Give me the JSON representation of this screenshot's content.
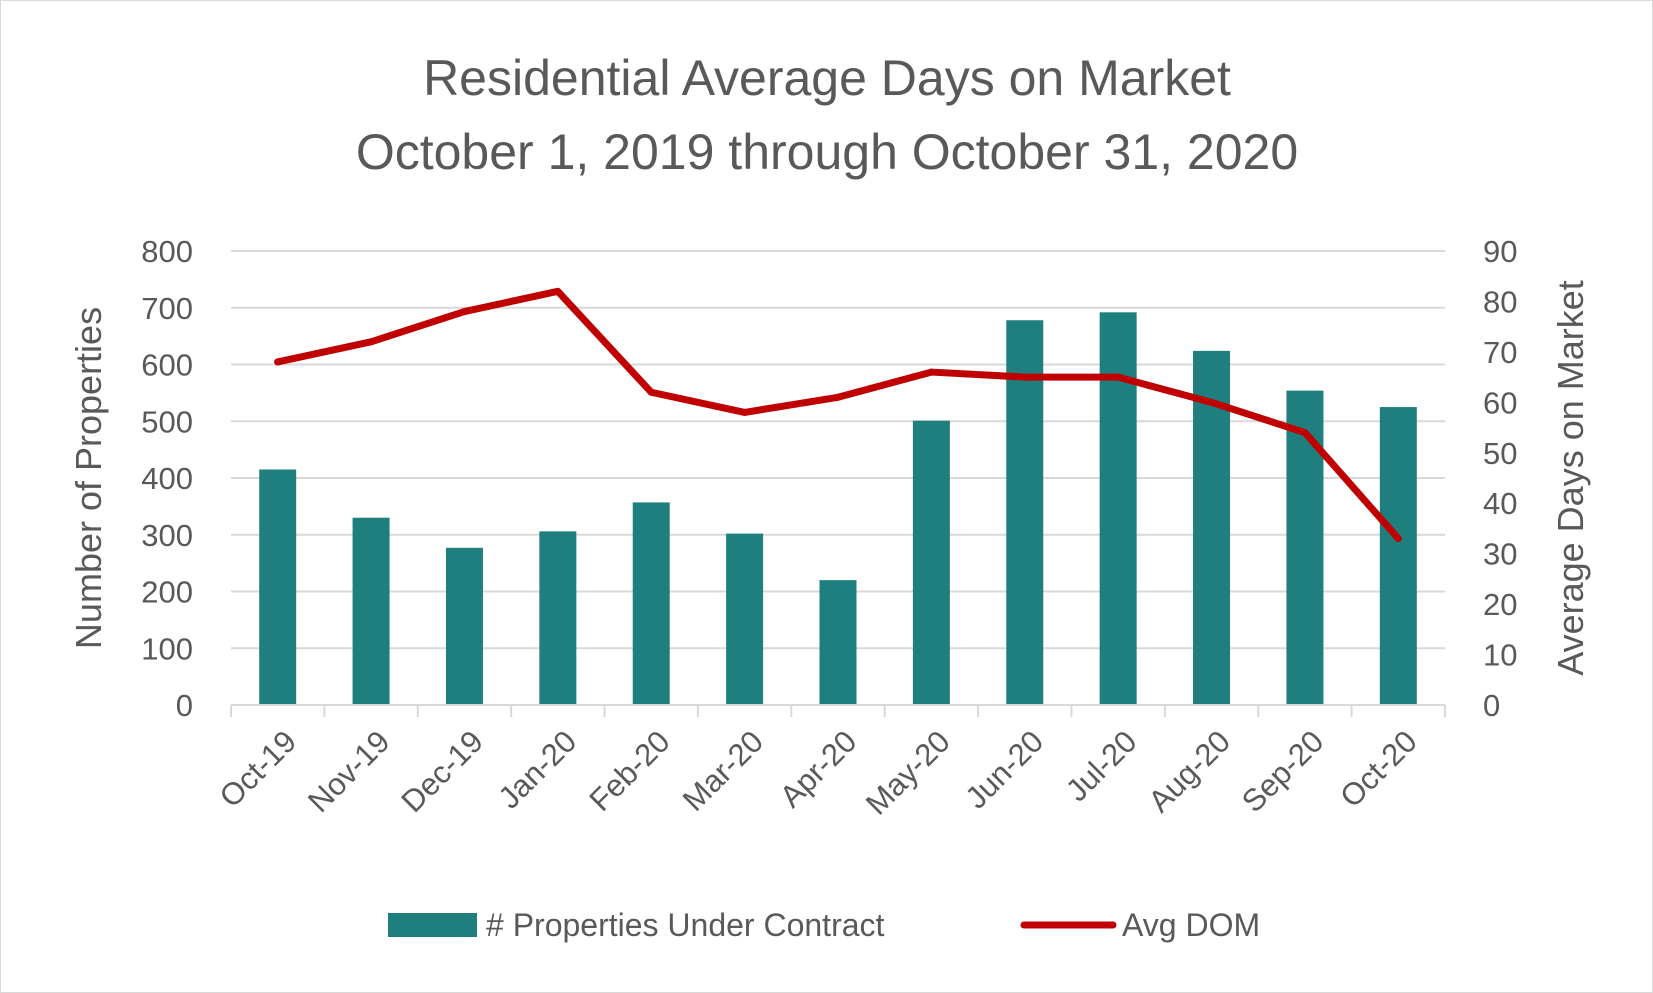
{
  "chart_data": {
    "type": "bar",
    "title_lines": [
      "Residential Average Days on Market",
      "October 1, 2019 through October 31, 2020"
    ],
    "categories": [
      "Oct-19",
      "Nov-19",
      "Dec-19",
      "Jan-20",
      "Feb-20",
      "Mar-20",
      "Apr-20",
      "May-20",
      "Jun-20",
      "Jul-20",
      "Aug-20",
      "Sep-20",
      "Oct-20"
    ],
    "series": [
      {
        "name": "# Properties Under Contract",
        "type": "bar",
        "axis": "left",
        "color": "#1f7f7f",
        "values": [
          415,
          330,
          277,
          306,
          357,
          302,
          220,
          501,
          678,
          692,
          624,
          554,
          525
        ]
      },
      {
        "name": "Avg DOM",
        "type": "line",
        "axis": "right",
        "color": "#c00000",
        "values": [
          68,
          72,
          78,
          82,
          62,
          58,
          61,
          66,
          65,
          65,
          60,
          54,
          33
        ]
      }
    ],
    "ylabel_left": "Number of Properties",
    "ylabel_right": "Average Days on Market",
    "ylim_left": [
      0,
      800
    ],
    "ylim_right": [
      0,
      90
    ],
    "yticks_left": [
      "0",
      "100",
      "200",
      "300",
      "400",
      "500",
      "600",
      "700",
      "800"
    ],
    "yticks_right": [
      "0",
      "10",
      "20",
      "30",
      "40",
      "50",
      "60",
      "70",
      "80",
      "90"
    ],
    "grid": true,
    "legend_position": "bottom"
  }
}
